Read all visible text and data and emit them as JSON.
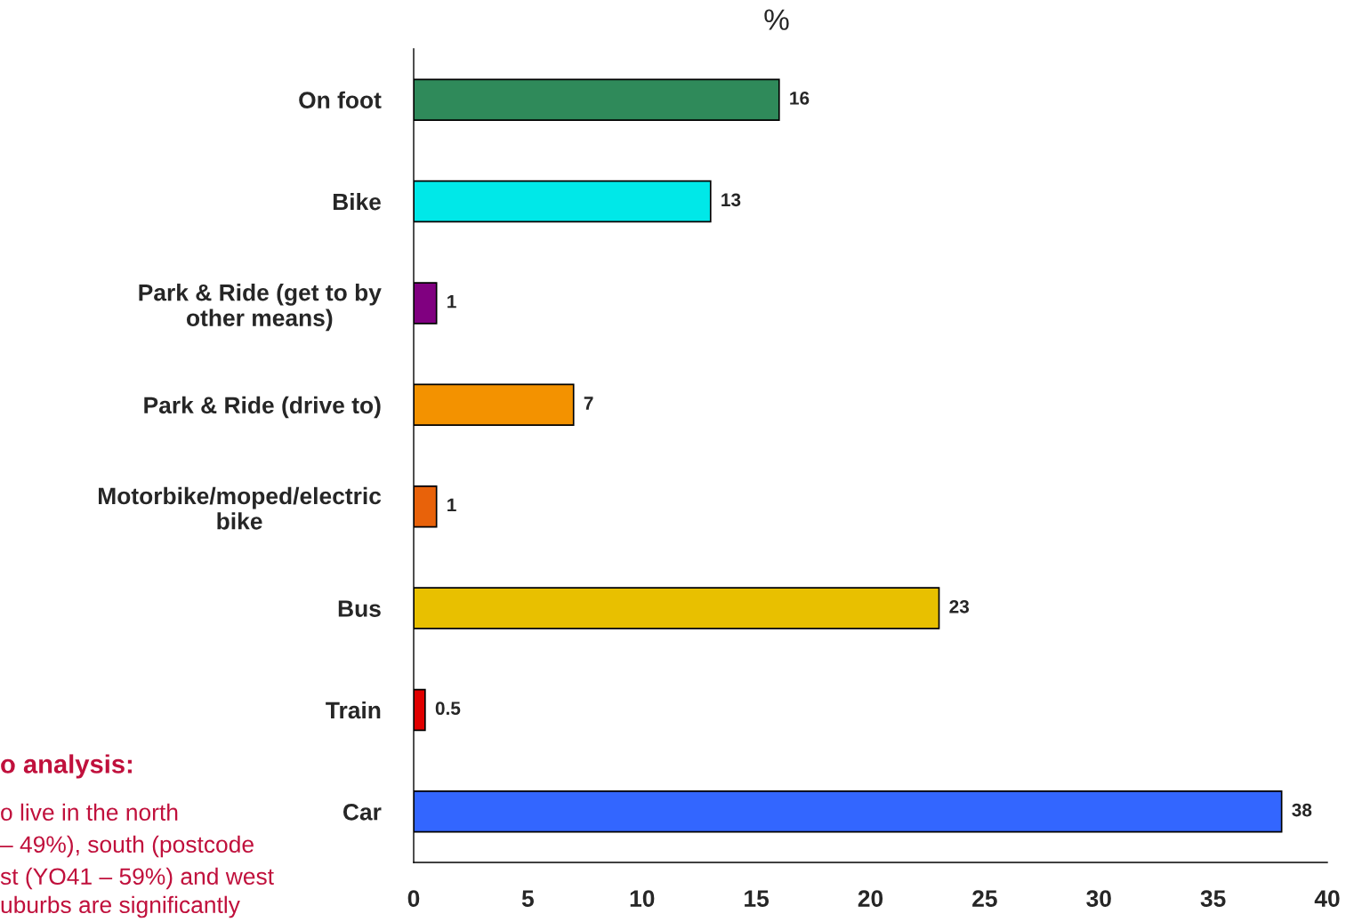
{
  "chart_data": {
    "type": "bar",
    "orientation": "horizontal",
    "title": "%",
    "categories": [
      "On foot",
      "Bike",
      "Park & Ride (get to by\nother means)",
      "Park & Ride (drive to)",
      "Motorbike/moped/electric\nbike",
      "Bus",
      "Train",
      "Car"
    ],
    "values": [
      16,
      13,
      1,
      7,
      1,
      23,
      0.5,
      38
    ],
    "colors": [
      "#2f8a5a",
      "#00e8e8",
      "#800080",
      "#f39200",
      "#e8620a",
      "#e8c000",
      "#e00000",
      "#3366ff"
    ],
    "data_labels": true,
    "xlim": [
      0,
      40
    ],
    "xticks": [
      0,
      5,
      10,
      15,
      20,
      25,
      30,
      35,
      40
    ],
    "grid": false,
    "annotations": [
      "o analysis:",
      "o live in the north",
      "– 49%), south (postcode",
      "st (YO41 – 59%) and west",
      "uburbs are significantly"
    ]
  }
}
